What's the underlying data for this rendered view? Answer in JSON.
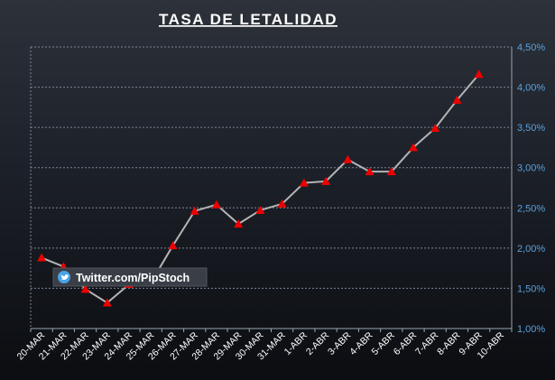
{
  "chart_data": {
    "type": "line",
    "title": "TASA DE LETALIDAD",
    "categories": [
      "20-MAR",
      "21-MAR",
      "22-MAR",
      "23-MAR",
      "24-MAR",
      "25-MAR",
      "26-MAR",
      "27-MAR",
      "28-MAR",
      "29-MAR",
      "30-MAR",
      "31-MAR",
      "1-ABR",
      "2-ABR",
      "3-ABR",
      "4-ABR",
      "5-ABR",
      "6-ABR",
      "7-ABR",
      "8-ABR",
      "9-ABR",
      "10-ABR"
    ],
    "series": [
      {
        "values": [
          1.88,
          1.77,
          1.49,
          1.32,
          1.55,
          1.57,
          2.03,
          2.46,
          2.54,
          2.3,
          2.47,
          2.55,
          2.81,
          2.83,
          3.1,
          2.95,
          2.95,
          3.25,
          3.49,
          3.84,
          4.16,
          null
        ],
        "color": "#b4b4b4",
        "marker": "triangle",
        "marker_color": "#ee0000"
      }
    ],
    "ylim": [
      1.0,
      4.5
    ],
    "yticks": [
      "1,00%",
      "1,50%",
      "2,00%",
      "2,50%",
      "3,00%",
      "3,50%",
      "4,00%",
      "4,50%"
    ],
    "y_axis_side": "right",
    "grid": true,
    "legend": false,
    "watermark": "Twitter.com/PipStoch",
    "watermark_icon": "twitter-bird-icon",
    "colors": {
      "tick_y": "#5aa0dc",
      "grid": "#7b8796",
      "line": "#b4b4b4",
      "marker": "#ee0000"
    }
  }
}
